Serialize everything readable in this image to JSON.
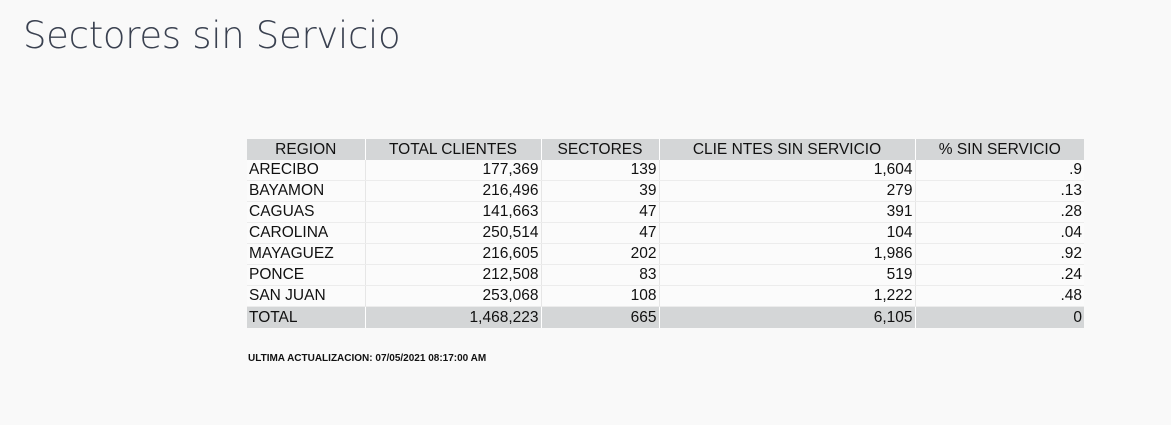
{
  "page": {
    "title": "Sectores sin Servicio"
  },
  "table": {
    "headers": {
      "region": "REGION",
      "total_clientes": "TOTAL CLIENTES",
      "sectores": "SECTORES",
      "clientes_sin_servicio": "CLIE NTES SIN SERVICIO",
      "pct_sin_servicio": "% SIN SERVICIO"
    },
    "rows": [
      {
        "region": "ARECIBO",
        "total_clientes": "177,369",
        "sectores": "139",
        "clientes_sin_servicio": "1,604",
        "pct_sin_servicio": ".9"
      },
      {
        "region": "BAYAMON",
        "total_clientes": "216,496",
        "sectores": "39",
        "clientes_sin_servicio": "279",
        "pct_sin_servicio": ".13"
      },
      {
        "region": "CAGUAS",
        "total_clientes": "141,663",
        "sectores": "47",
        "clientes_sin_servicio": "391",
        "pct_sin_servicio": ".28"
      },
      {
        "region": "CAROLINA",
        "total_clientes": "250,514",
        "sectores": "47",
        "clientes_sin_servicio": "104",
        "pct_sin_servicio": ".04"
      },
      {
        "region": "MAYAGUEZ",
        "total_clientes": "216,605",
        "sectores": "202",
        "clientes_sin_servicio": "1,986",
        "pct_sin_servicio": ".92"
      },
      {
        "region": "PONCE",
        "total_clientes": "212,508",
        "sectores": "83",
        "clientes_sin_servicio": "519",
        "pct_sin_servicio": ".24"
      },
      {
        "region": "SAN JUAN",
        "total_clientes": "253,068",
        "sectores": "108",
        "clientes_sin_servicio": "1,222",
        "pct_sin_servicio": ".48"
      }
    ],
    "total": {
      "region": "TOTAL",
      "total_clientes": "1,468,223",
      "sectores": "665",
      "clientes_sin_servicio": "6,105",
      "pct_sin_servicio": "0"
    }
  },
  "footer": {
    "last_update": "ULTIMA ACTUALIZACION: 07/05/2021 08:17:00 AM"
  },
  "colors": {
    "title": "#3a4150",
    "header_bg": "#d4d6d7",
    "page_bg": "#f9f9f9"
  }
}
